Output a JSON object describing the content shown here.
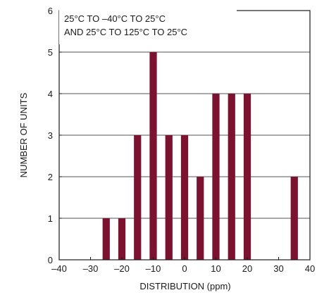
{
  "chart_data": {
    "type": "bar",
    "title": "",
    "annotation": [
      "25°C TO –40°C TO 25°C",
      "AND 25°C TO 125°C TO 25°C"
    ],
    "xlabel": "DISTRIBUTION (ppm)",
    "ylabel": "NUMBER OF UNITS",
    "xlim": [
      -40,
      40
    ],
    "ylim": [
      0,
      6
    ],
    "x_ticks": [
      -40,
      -30,
      -20,
      -10,
      0,
      10,
      20,
      30,
      40
    ],
    "x_tick_labels": [
      "–40",
      "–30",
      "–20",
      "–10",
      "0",
      "10",
      "20",
      "30",
      "40"
    ],
    "y_ticks": [
      0,
      1,
      2,
      3,
      4,
      5,
      6
    ],
    "y_tick_labels": [
      "0",
      "1",
      "2",
      "3",
      "4",
      "5",
      "6"
    ],
    "grid": "horizontal",
    "bar_color": "#7a1230",
    "x": [
      -25,
      -20,
      -15,
      -10,
      -5,
      0,
      5,
      10,
      15,
      20,
      35
    ],
    "values": [
      1,
      1,
      3,
      5,
      3,
      3,
      2,
      4,
      4,
      4,
      2
    ]
  }
}
